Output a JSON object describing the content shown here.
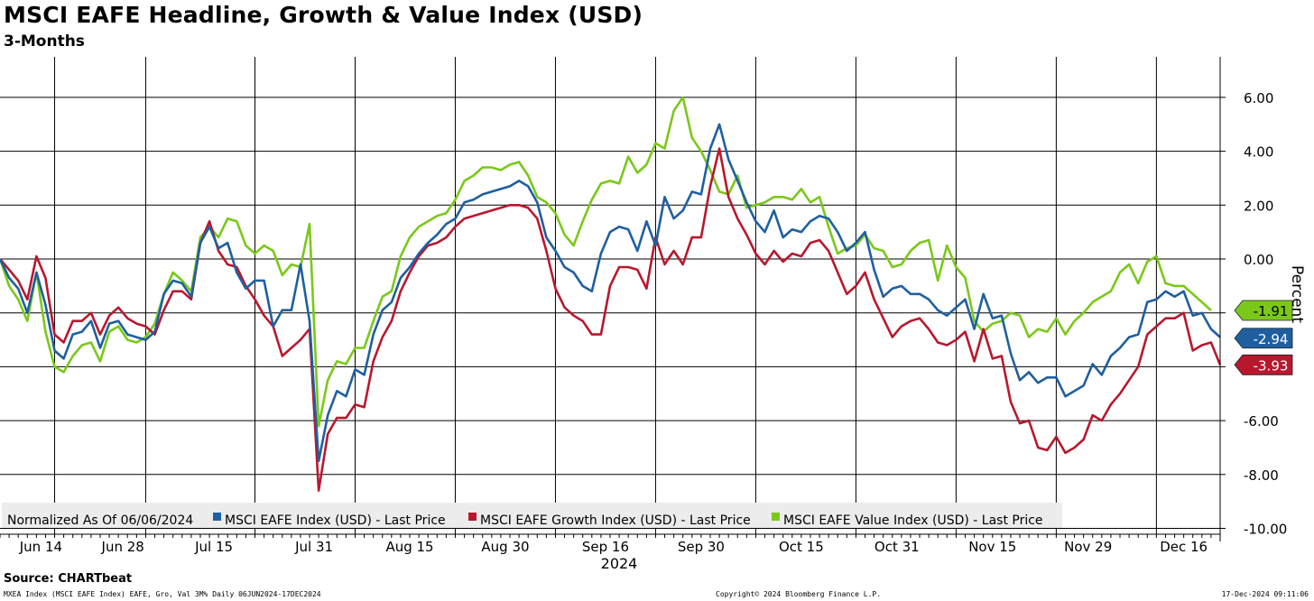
{
  "chart_data": {
    "type": "line",
    "title": "MSCI EAFE Headline, Growth & Value Index (USD)",
    "subtitle": "3-Months",
    "ylabel": "Percent",
    "xlabel": "2024",
    "ylim": [
      -10.5,
      7.5
    ],
    "y_ticks": [
      6,
      4,
      2,
      0,
      -2,
      -4,
      -6,
      -8,
      -10
    ],
    "y_tick_labels": [
      "6.00",
      "4.00",
      "2.00",
      "0.00",
      "-2.00",
      "-4.00",
      "-6.00",
      "-8.00",
      "-10.00"
    ],
    "x_ticks": [
      6,
      16,
      28,
      39,
      50,
      61,
      72,
      83,
      94,
      105,
      116,
      127
    ],
    "x_tick_labels": [
      "Jun 14",
      "Jun 28",
      "Jul 15",
      "Jul 31",
      "Aug 15",
      "Aug 30",
      "Sep 16",
      "Sep 30",
      "Oct 15",
      "Oct 31",
      "Nov 15",
      "Nov 29",
      "Dec 16"
    ],
    "x_tick_label_positions": [
      4.5,
      13.5,
      23.5,
      34.5,
      45,
      55.5,
      66.5,
      77,
      88,
      98.5,
      109,
      119.5,
      130
    ],
    "year_label": "2024",
    "x_range": [
      0,
      134
    ],
    "legend_note": "Normalized As Of 06/06/2024",
    "series": [
      {
        "name": "MSCI EAFE Index (USD) - Last Price",
        "color": "#1F5FA0",
        "last_value": -2.94,
        "last_label": "-2.94",
        "values": [
          0,
          -0.7,
          -1.1,
          -2,
          -0.5,
          -1.7,
          -3.4,
          -3.7,
          -2.8,
          -2.7,
          -2.3,
          -3.3,
          -2.4,
          -2.3,
          -2.8,
          -2.9,
          -3.0,
          -2.7,
          -1.3,
          -0.8,
          -0.9,
          -1.4,
          0.6,
          1.2,
          0.4,
          0.6,
          -0.5,
          -1.1,
          -0.8,
          -0.8,
          -2.5,
          -1.9,
          -1.9,
          -0.2,
          -2.3,
          -7.5,
          -5.8,
          -4.9,
          -5.1,
          -4.1,
          -4.3,
          -2.8,
          -1.9,
          -1.6,
          -0.7,
          -0.3,
          0.2,
          0.6,
          0.9,
          1.3,
          1.5,
          2.1,
          2.2,
          2.4,
          2.5,
          2.6,
          2.7,
          2.9,
          2.7,
          2.1,
          0.8,
          0.3,
          -0.3,
          -0.5,
          -1.0,
          -1.2,
          0.2,
          1.0,
          1.2,
          1.1,
          0.3,
          1.4,
          0.5,
          2.3,
          1.5,
          1.8,
          2.5,
          2.4,
          4.1,
          5.0,
          3.7,
          2.9,
          2.1,
          1.4,
          1.0,
          1.8,
          0.8,
          1.1,
          1.0,
          1.4,
          1.6,
          1.5,
          1.0,
          0.3,
          0.6,
          1.0,
          -0.4,
          -1.4,
          -1.1,
          -1.0,
          -1.3,
          -1.3,
          -1.5,
          -1.9,
          -2.1,
          -1.8,
          -1.5,
          -2.6,
          -1.3,
          -2.2,
          -2.1,
          -3.5,
          -4.5,
          -4.2,
          -4.6,
          -4.4,
          -4.4,
          -5.1,
          -4.9,
          -4.7,
          -3.9,
          -4.3,
          -3.6,
          -3.3,
          -2.9,
          -2.8,
          -1.6,
          -1.5,
          -1.2,
          -1.4,
          -1.2,
          -2.1,
          -2.0,
          -2.6,
          -2.9
        ]
      },
      {
        "name": "MSCI EAFE Growth Index (USD) - Last Price",
        "color": "#B8182E",
        "last_value": -3.93,
        "last_label": "-3.93",
        "values": [
          0,
          -0.4,
          -0.8,
          -1.5,
          0.1,
          -0.7,
          -2.8,
          -3.1,
          -2.3,
          -2.3,
          -2.0,
          -2.8,
          -2.1,
          -1.8,
          -2.2,
          -2.4,
          -2.5,
          -2.8,
          -1.9,
          -1.2,
          -1.2,
          -1.5,
          0.6,
          1.4,
          0.3,
          -0.2,
          -0.3,
          -1.0,
          -1.5,
          -2.1,
          -2.5,
          -3.6,
          -3.3,
          -3.0,
          -2.6,
          -8.6,
          -6.5,
          -5.9,
          -5.9,
          -5.4,
          -5.5,
          -3.8,
          -2.9,
          -2.3,
          -1.2,
          -0.5,
          0.1,
          0.5,
          0.6,
          0.8,
          1.2,
          1.5,
          1.6,
          1.7,
          1.8,
          1.9,
          2.0,
          2.0,
          1.9,
          1.5,
          0.3,
          -1.1,
          -1.8,
          -2.1,
          -2.3,
          -2.8,
          -2.8,
          -1.0,
          -0.3,
          -0.3,
          -0.4,
          -1.1,
          0.8,
          -0.2,
          0.3,
          -0.2,
          0.8,
          0.8,
          2.7,
          4.1,
          2.3,
          1.5,
          0.9,
          0.2,
          -0.2,
          0.3,
          -0.1,
          0.2,
          0.1,
          0.6,
          0.7,
          0.3,
          -0.5,
          -1.3,
          -1.0,
          -0.5,
          -1.5,
          -2.2,
          -2.9,
          -2.5,
          -2.3,
          -2.2,
          -2.6,
          -3.1,
          -3.2,
          -3.0,
          -2.7,
          -3.8,
          -2.6,
          -3.7,
          -3.6,
          -5.3,
          -6.1,
          -6.0,
          -7.0,
          -7.1,
          -6.6,
          -7.2,
          -7.0,
          -6.7,
          -5.8,
          -6.0,
          -5.4,
          -5.0,
          -4.5,
          -4.0,
          -2.8,
          -2.5,
          -2.2,
          -2.2,
          -2.0,
          -3.4,
          -3.2,
          -3.1,
          -3.93
        ]
      },
      {
        "name": "MSCI EAFE Value Index (USD) - Last Price",
        "color": "#7AC819",
        "last_value": -1.91,
        "last_label": "-1.91",
        "values": [
          0,
          -1.0,
          -1.5,
          -2.3,
          -0.5,
          -2.7,
          -4.0,
          -4.2,
          -3.6,
          -3.2,
          -3.1,
          -3.8,
          -2.7,
          -2.5,
          -3.0,
          -3.1,
          -2.9,
          -2.4,
          -1.3,
          -0.5,
          -0.8,
          -1.2,
          0.8,
          1.2,
          0.8,
          1.5,
          1.4,
          0.5,
          0.2,
          0.5,
          0.3,
          -0.6,
          -0.2,
          -0.3,
          1.3,
          -6.2,
          -4.5,
          -3.8,
          -3.9,
          -3.3,
          -3.3,
          -2.3,
          -1.4,
          -1.2,
          0.1,
          0.8,
          1.2,
          1.4,
          1.6,
          1.7,
          2.2,
          2.9,
          3.1,
          3.4,
          3.4,
          3.3,
          3.5,
          3.6,
          3.1,
          2.3,
          2.1,
          1.7,
          0.9,
          0.5,
          1.4,
          2.2,
          2.8,
          2.9,
          2.8,
          3.8,
          3.2,
          3.5,
          4.3,
          4.1,
          5.5,
          6.0,
          4.5,
          4.0,
          3.3,
          2.5,
          2.4,
          3.1,
          1.9,
          2.0,
          2.1,
          2.3,
          2.3,
          2.2,
          2.6,
          2.1,
          2.3,
          1.2,
          0.2,
          0.4,
          0.5,
          0.9,
          0.4,
          0.3,
          -0.3,
          -0.2,
          0.3,
          0.6,
          0.7,
          -0.8,
          0.5,
          -0.3,
          -0.7,
          -2.3,
          -2.7,
          -2.4,
          -2.3,
          -2.0,
          -2.1,
          -2.9,
          -2.6,
          -2.7,
          -2.2,
          -2.8,
          -2.3,
          -2.0,
          -1.6,
          -1.4,
          -1.2,
          -0.5,
          -0.2,
          -0.9,
          -0.1,
          0.1,
          -0.9,
          -1.0,
          -1.0,
          -1.3,
          -1.6,
          -1.91
        ]
      }
    ]
  },
  "source": "Source: CHARTbeat",
  "footer": {
    "left": "MXEA Index (MSCI EAFE Index) EAFE, Gro, Val 3M%  Daily 06JUN2024-17DEC2024",
    "center": "Copyright© 2024 Bloomberg Finance L.P.",
    "right": "17-Dec-2024 09:11:06"
  }
}
